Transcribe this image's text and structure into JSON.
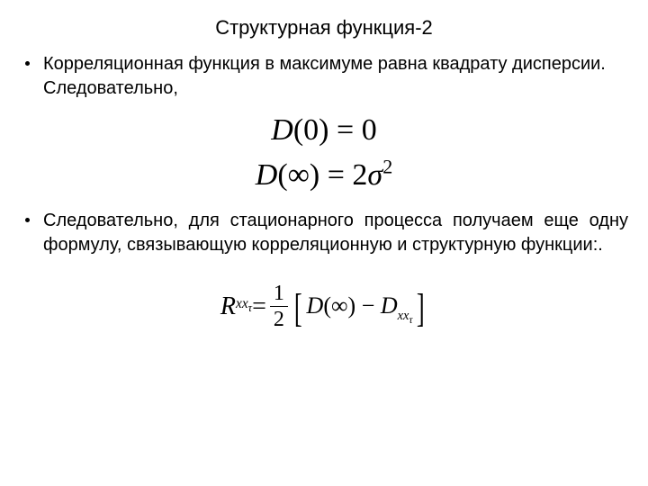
{
  "title": "Структурная функция-2",
  "bullets": {
    "b1": "Корреляционная функция в максимуме равна квадрату дисперсии. Следовательно,",
    "b2": "Следовательно, для стационарного процесса получаем еще одну формулу, связывающую корреляционную и структурную функции:."
  },
  "equations": {
    "eq1": {
      "D": "D",
      "arg": "(0)",
      "eq": " = ",
      "rhs": "0"
    },
    "eq2": {
      "D": "D",
      "arg_open": "(",
      "inf": "∞",
      "arg_close": ")",
      "eq": " = ",
      "two": "2",
      "sigma": "σ",
      "exp": "2"
    },
    "eq3": {
      "R": "R",
      "Rsub": "xx",
      "tau": "τ",
      "eq": " = ",
      "num": "1",
      "den": "2",
      "lb": "[",
      "D": "D",
      "po": "(",
      "inf": "∞",
      "pc": ")",
      "minus": " − ",
      "D2": "D",
      "D2sub": "xx",
      "rb": "]"
    }
  },
  "style": {
    "title_fontsize": 22,
    "body_fontsize": 20,
    "eq_large_fontsize": 34,
    "eq3_fontsize": 28,
    "text_color": "#000000",
    "bg_color": "#ffffff"
  }
}
